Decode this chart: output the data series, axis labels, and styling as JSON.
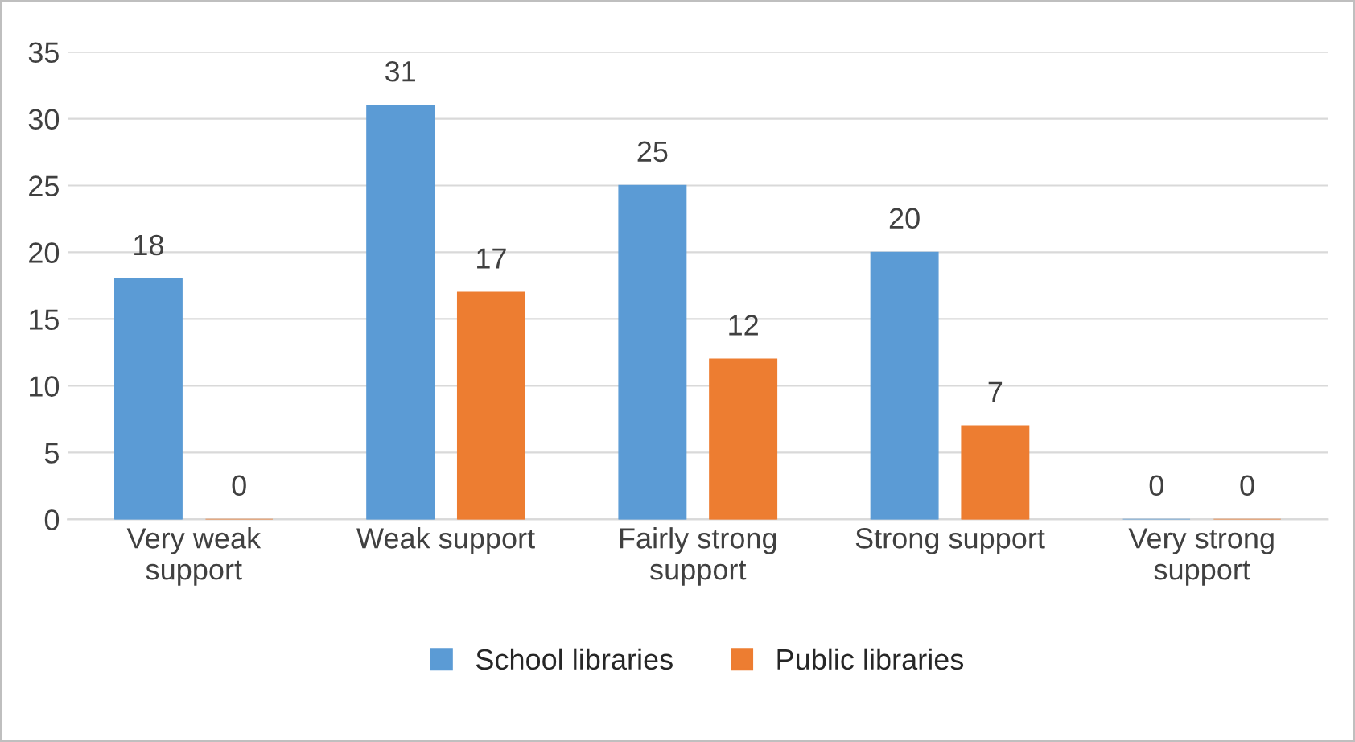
{
  "chart_data": {
    "type": "bar",
    "categories": [
      "Very weak\nsupport",
      "Weak support",
      "Fairly strong\nsupport",
      "Strong support",
      "Very strong\nsupport"
    ],
    "series": [
      {
        "name": "School libraries",
        "color": "#5b9bd5",
        "values": [
          18,
          31,
          25,
          20,
          0
        ]
      },
      {
        "name": "Public libraries",
        "color": "#ed7d31",
        "values": [
          0,
          17,
          12,
          7,
          0
        ]
      }
    ],
    "ylim": [
      0,
      35
    ],
    "yticks": [
      0,
      5,
      10,
      15,
      20,
      25,
      30,
      35
    ],
    "grid": "y",
    "legend": "bottom",
    "data_labels": true
  }
}
